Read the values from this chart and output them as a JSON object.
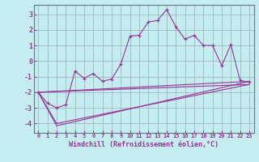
{
  "xlabel": "Windchill (Refroidissement éolien,°C)",
  "bg_color": "#c5ecee",
  "grid_color": "#99aabb",
  "line_color": "#993399",
  "xlim": [
    -0.5,
    23.5
  ],
  "ylim": [
    -4.6,
    3.6
  ],
  "yticks": [
    -4,
    -3,
    -2,
    -1,
    0,
    1,
    2,
    3
  ],
  "xticks": [
    0,
    1,
    2,
    3,
    4,
    5,
    6,
    7,
    8,
    9,
    10,
    11,
    12,
    13,
    14,
    15,
    16,
    17,
    18,
    19,
    20,
    21,
    22,
    23
  ],
  "zigzag_x": [
    0,
    1,
    2,
    3,
    4,
    5,
    6,
    7,
    8,
    9,
    10,
    11,
    12,
    13,
    14,
    15,
    16,
    17,
    18,
    19,
    20,
    21,
    22,
    23
  ],
  "zigzag_y": [
    -2.0,
    -2.7,
    -3.0,
    -2.8,
    -0.65,
    -1.1,
    -0.8,
    -1.3,
    -1.15,
    -0.2,
    1.6,
    1.65,
    2.5,
    2.6,
    3.3,
    2.2,
    1.4,
    1.65,
    1.0,
    1.0,
    -0.3,
    1.05,
    -1.25,
    -1.35
  ],
  "fan_lines": [
    {
      "x": [
        0,
        2,
        23
      ],
      "y": [
        -2.0,
        -4.15,
        -1.3
      ]
    },
    {
      "x": [
        0,
        2,
        23
      ],
      "y": [
        -2.0,
        -4.0,
        -1.5
      ]
    },
    {
      "x": [
        0,
        23
      ],
      "y": [
        -2.0,
        -1.3
      ]
    },
    {
      "x": [
        0,
        23
      ],
      "y": [
        -2.0,
        -1.5
      ]
    }
  ]
}
